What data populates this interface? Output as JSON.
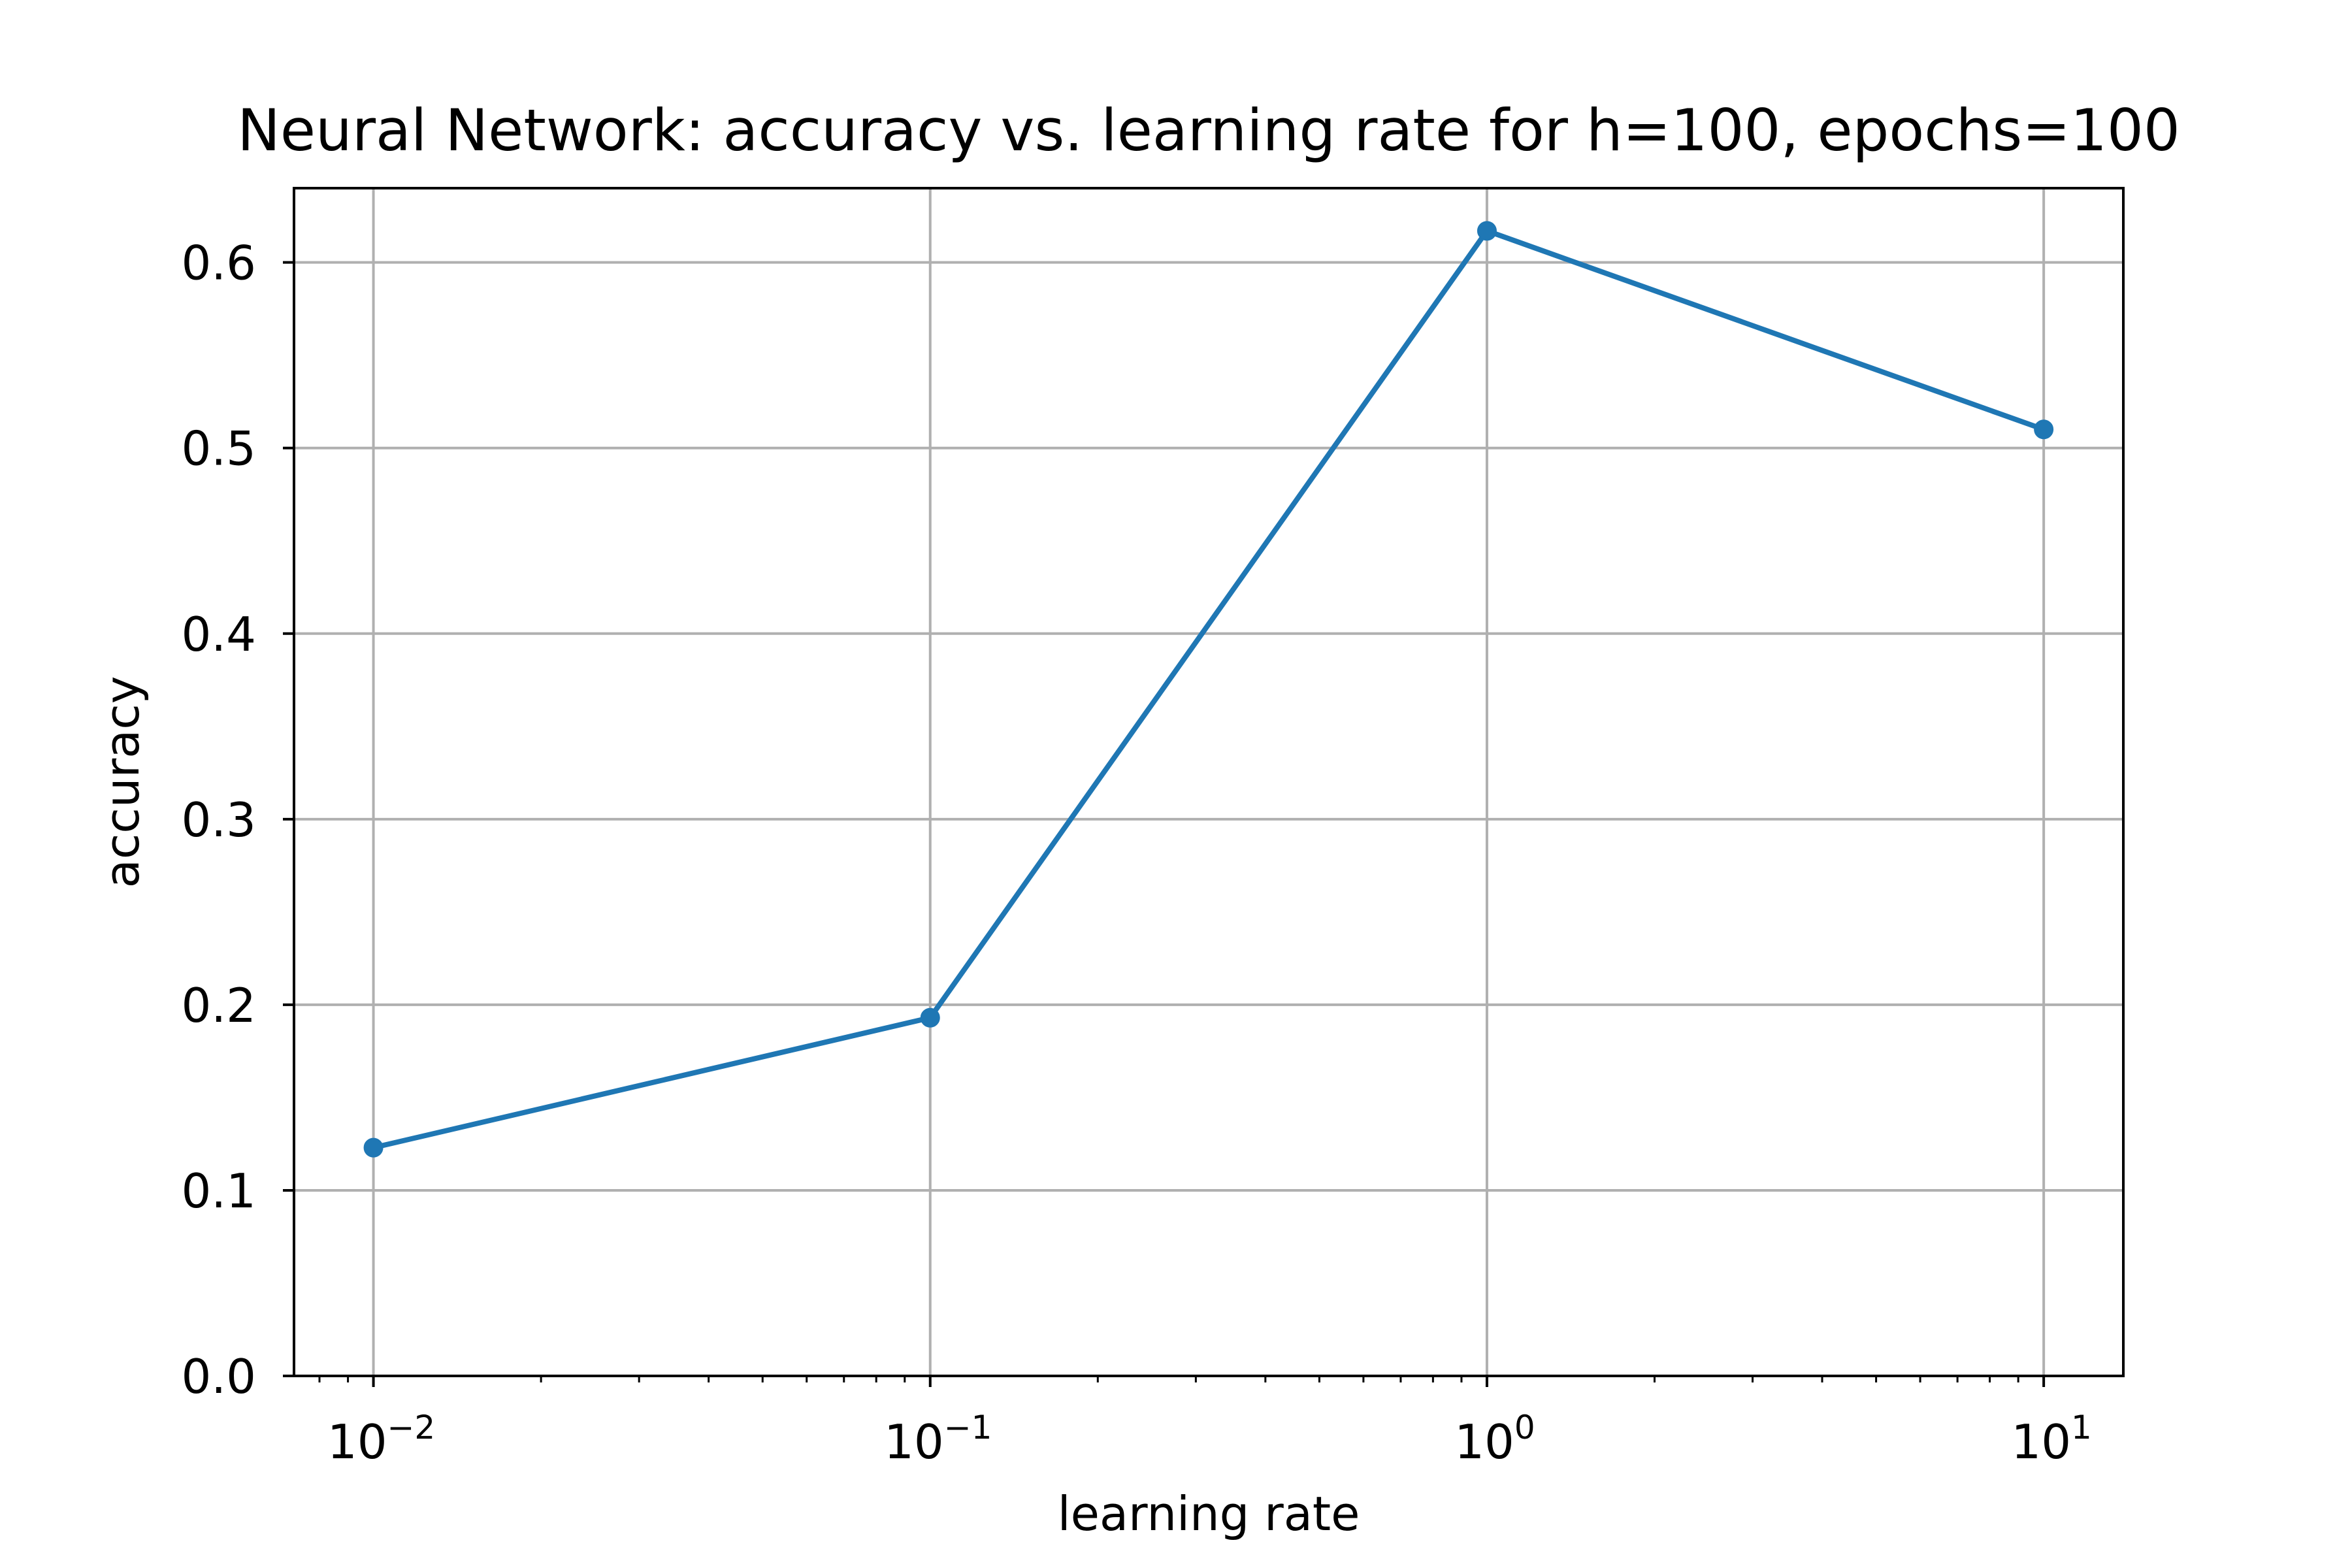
{
  "chart_data": {
    "type": "line",
    "title": "Neural Network: accuracy vs. learning rate for h=100, epochs=100",
    "xlabel": "learning rate",
    "ylabel": "accuracy",
    "xscale": "log",
    "xlim": [
      0.0072,
      13.9
    ],
    "ylim": [
      0.0,
      0.64
    ],
    "grid": true,
    "x_ticks": [
      {
        "value": 0.01,
        "base": "10",
        "exp": "−2"
      },
      {
        "value": 0.1,
        "base": "10",
        "exp": "−1"
      },
      {
        "value": 1,
        "base": "10",
        "exp": "0"
      },
      {
        "value": 10,
        "base": "10",
        "exp": "1"
      }
    ],
    "y_ticks": [
      {
        "value": 0.0,
        "label": "0.0"
      },
      {
        "value": 0.1,
        "label": "0.1"
      },
      {
        "value": 0.2,
        "label": "0.2"
      },
      {
        "value": 0.3,
        "label": "0.3"
      },
      {
        "value": 0.4,
        "label": "0.4"
      },
      {
        "value": 0.5,
        "label": "0.5"
      },
      {
        "value": 0.6,
        "label": "0.6"
      }
    ],
    "series": [
      {
        "color": "#1f77b4",
        "marker": "circle",
        "x": [
          0.01,
          0.1,
          1,
          10
        ],
        "y": [
          0.123,
          0.193,
          0.617,
          0.51
        ]
      }
    ]
  }
}
